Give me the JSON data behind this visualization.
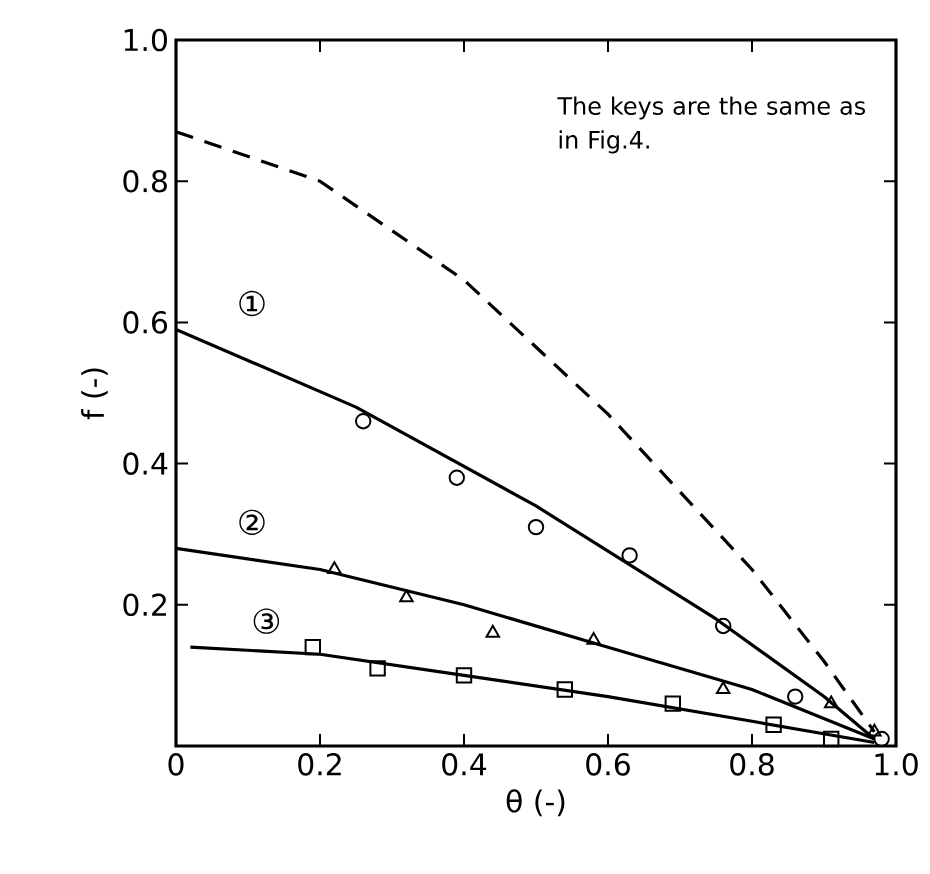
{
  "chart_data": {
    "type": "scatter",
    "xlabel": "θ (-)",
    "ylabel": "f (-)",
    "xlim": [
      0,
      1.0
    ],
    "ylim": [
      0,
      1.0
    ],
    "xticks": [
      0,
      0.2,
      0.4,
      0.6,
      0.8,
      {
        "value": 1.0,
        "label": "1.0"
      }
    ],
    "yticks": [
      0.2,
      0.4,
      0.6,
      0.8,
      {
        "value": 1.0,
        "label": "1.0"
      }
    ],
    "grid": false,
    "legend": "left",
    "annotations": [
      "The keys are the same as in Fig.4."
    ],
    "series": [
      {
        "marker": "circle",
        "color": "#000000",
        "x": [
          0.26,
          0.39,
          0.5,
          0.63,
          0.76,
          0.86,
          0.98
        ],
        "values": [
          0.46,
          0.38,
          0.31,
          0.27,
          0.17,
          0.07,
          0.01
        ]
      },
      {
        "marker": "triangle",
        "color": "#000000",
        "x": [
          0.22,
          0.32,
          0.44,
          0.58,
          0.76,
          0.91,
          0.97
        ],
        "values": [
          0.25,
          0.21,
          0.16,
          0.15,
          0.08,
          0.06,
          0.02
        ]
      },
      {
        "marker": "square",
        "color": "#000000",
        "x": [
          0.19,
          0.28,
          0.4,
          0.54,
          0.69,
          0.83,
          0.91
        ],
        "values": [
          0.14,
          0.11,
          0.1,
          0.08,
          0.06,
          0.03,
          0.01
        ]
      },
      {
        "type": "line",
        "name": "①",
        "line_style": "solid",
        "color": "#000000",
        "x": [
          0,
          0.25,
          0.5,
          0.75,
          0.9,
          0.97
        ],
        "values": [
          0.59,
          0.48,
          0.34,
          0.18,
          0.07,
          0.01
        ]
      },
      {
        "type": "line",
        "name": "②",
        "line_style": "solid",
        "color": "#000000",
        "x": [
          0,
          0.2,
          0.4,
          0.6,
          0.8,
          0.97
        ],
        "values": [
          0.28,
          0.25,
          0.2,
          0.14,
          0.08,
          0.01
        ]
      },
      {
        "type": "line",
        "name": "③",
        "line_style": "solid",
        "color": "#000000",
        "x": [
          0.02,
          0.2,
          0.4,
          0.6,
          0.8,
          0.97
        ],
        "values": [
          0.14,
          0.13,
          0.1,
          0.07,
          0.035,
          0.005
        ]
      },
      {
        "type": "line",
        "line_style": "dashed",
        "color": "#000000",
        "x": [
          0,
          0.2,
          0.4,
          0.6,
          0.8,
          0.9,
          0.97
        ],
        "values": [
          0.87,
          0.8,
          0.66,
          0.47,
          0.25,
          0.12,
          0.02
        ]
      }
    ]
  }
}
